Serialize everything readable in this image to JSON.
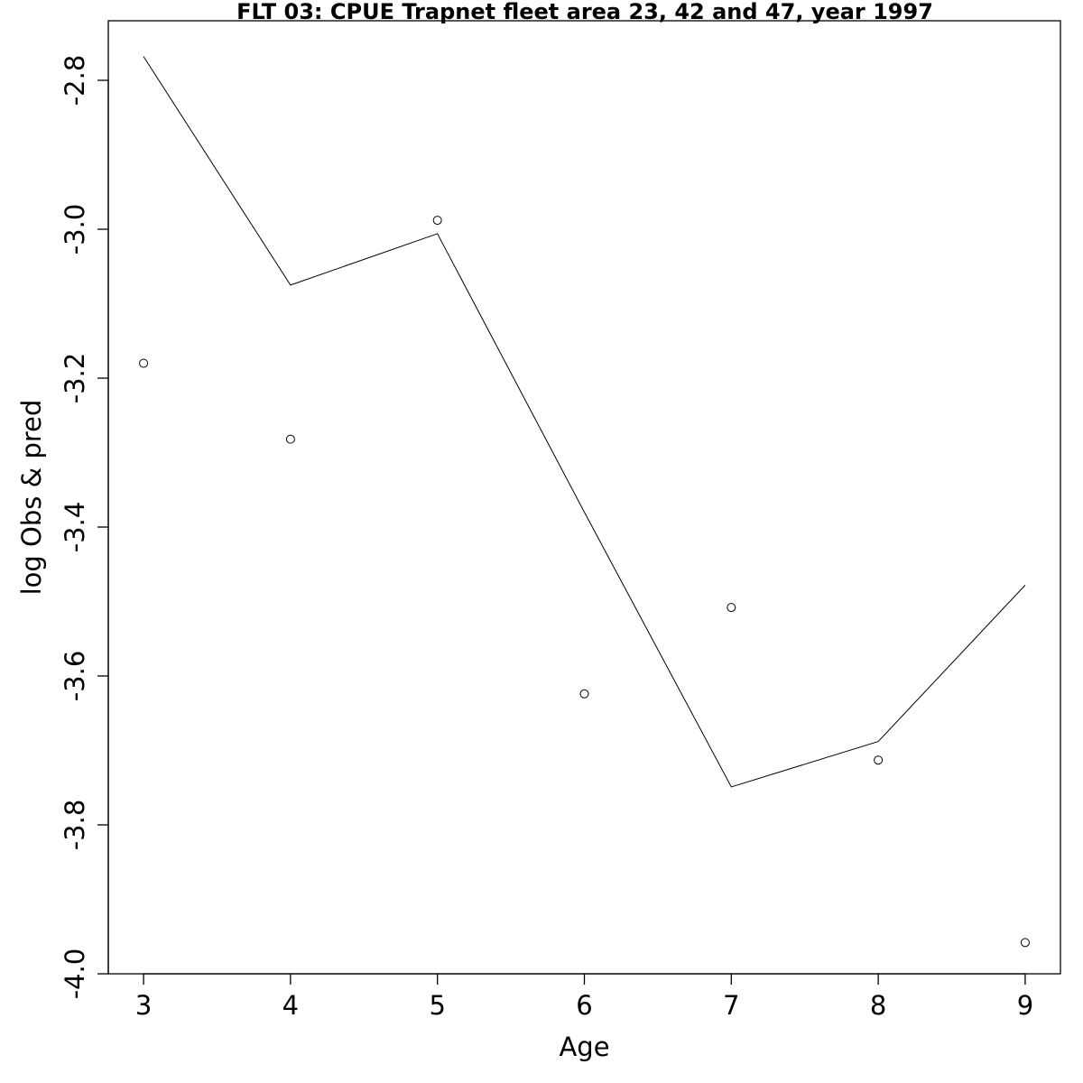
{
  "chart_data": {
    "type": "line",
    "title": "FLT 03: CPUE Trapnet fleet area 23, 42 and 47, year 1997",
    "xlabel": "Age",
    "ylabel": "log Obs & pred",
    "x": [
      3,
      4,
      5,
      6,
      7,
      8,
      9
    ],
    "x_ticks": [
      "3",
      "4",
      "5",
      "6",
      "7",
      "8",
      "9"
    ],
    "y_ticks": [
      "-4.0",
      "-3.8",
      "-3.6",
      "-3.4",
      "-3.2",
      "-3.0",
      "-2.8"
    ],
    "xlim": [
      2.76,
      9.24
    ],
    "ylim": [
      -4.0,
      -2.72
    ],
    "series": [
      {
        "style": "line",
        "values": [
          -2.768,
          -3.075,
          -3.006,
          -3.38,
          -3.749,
          -3.688,
          -3.478
        ]
      },
      {
        "style": "points",
        "values": [
          -3.18,
          -3.282,
          -2.988,
          -3.624,
          -3.508,
          -3.713,
          -3.958
        ]
      }
    ],
    "grid": false,
    "legend": "none"
  }
}
